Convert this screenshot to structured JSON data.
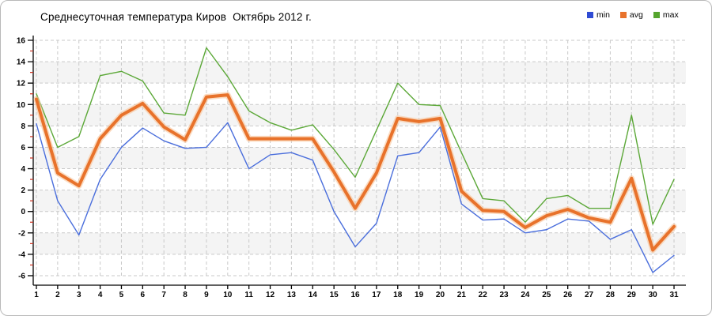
{
  "header": {
    "title": "Среднесуточная температура Киров  Октябрь 2012 г."
  },
  "legend": {
    "items": [
      {
        "label": "min",
        "color": "#2f4cd4"
      },
      {
        "label": "avg",
        "color": "#e8732c"
      },
      {
        "label": "max",
        "color": "#55a52e"
      }
    ]
  },
  "chart_data": {
    "type": "line",
    "title": "Среднесуточная температура Киров  Октябрь 2012 г.",
    "xlabel": "",
    "ylabel": "",
    "x": [
      1,
      2,
      3,
      4,
      5,
      6,
      7,
      8,
      9,
      10,
      11,
      12,
      13,
      14,
      15,
      16,
      17,
      18,
      19,
      20,
      21,
      22,
      23,
      24,
      25,
      26,
      27,
      28,
      29,
      30,
      31
    ],
    "series": [
      {
        "name": "min",
        "color": "#4a6edc",
        "values": [
          8.2,
          1.0,
          -2.2,
          3.0,
          6.0,
          7.8,
          6.6,
          5.9,
          6.0,
          8.3,
          4.0,
          5.3,
          5.5,
          4.8,
          0.0,
          -3.3,
          -1.1,
          5.2,
          5.5,
          7.9,
          0.7,
          -0.8,
          -0.7,
          -2.0,
          -1.7,
          -0.7,
          -0.9,
          -2.6,
          -1.7,
          -5.7,
          -4.1
        ]
      },
      {
        "name": "avg",
        "color": "#e8722b",
        "halo_color": "#f8c49a",
        "values": [
          10.5,
          3.6,
          2.4,
          6.8,
          9.0,
          10.1,
          7.9,
          6.7,
          10.7,
          10.9,
          6.8,
          6.8,
          6.8,
          6.8,
          3.7,
          0.3,
          3.6,
          8.7,
          8.4,
          8.7,
          1.9,
          0.1,
          0.0,
          -1.5,
          -0.4,
          0.2,
          -0.6,
          -1.0,
          3.1,
          -3.6,
          -1.4
        ]
      },
      {
        "name": "max",
        "color": "#5ca838",
        "values": [
          11.0,
          6.0,
          7.0,
          12.7,
          13.1,
          12.2,
          9.2,
          9.0,
          15.3,
          12.6,
          9.4,
          8.3,
          7.6,
          8.1,
          5.8,
          3.2,
          7.6,
          12.0,
          10.0,
          9.9,
          5.5,
          1.2,
          1.0,
          -1.0,
          1.2,
          1.5,
          0.3,
          0.3,
          9.0,
          -1.2,
          3.0
        ]
      }
    ],
    "ylim": [
      -6,
      16
    ],
    "y_ticks": [
      16,
      14,
      12,
      10,
      8,
      6,
      4,
      2,
      0,
      -2,
      -4,
      -6
    ],
    "grid": true,
    "legend_position": "top-right",
    "style": {
      "band_color": "#f4f4f4",
      "grid_color": "#c9c9c9",
      "axis_color": "#000000",
      "minor_tick_color": "#cc3322",
      "tick_label_color": "#000000"
    }
  }
}
